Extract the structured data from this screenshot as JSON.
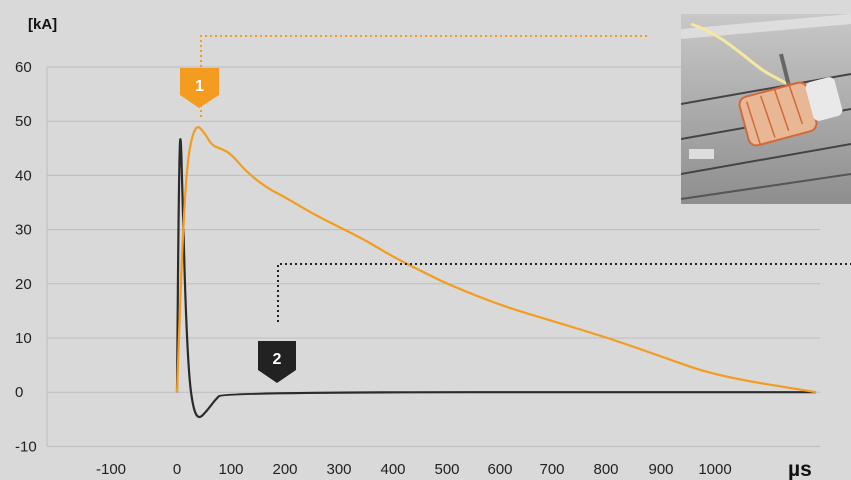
{
  "chart_data": {
    "type": "line",
    "y_unit": "[kA]",
    "x_unit": "µs",
    "ylim": [
      -10,
      60
    ],
    "y_ticks": [
      60,
      50,
      40,
      30,
      20,
      10,
      0,
      -10
    ],
    "x_ticks": [
      "-100",
      "0",
      "100",
      "200",
      "300",
      "400",
      "500",
      "600",
      "700",
      "800",
      "900",
      "1000"
    ],
    "grid": true,
    "series": [
      {
        "color": "#f39c1f",
        "marker": "1",
        "points": [
          {
            "t": "0",
            "y": 0
          },
          {
            "t": "10",
            "y": 28
          },
          {
            "t": "20",
            "y": 44
          },
          {
            "t": "35",
            "y": 49.5
          },
          {
            "t": "50",
            "y": 48
          },
          {
            "t": "65",
            "y": 45.5
          },
          {
            "t": "80",
            "y": 45
          },
          {
            "t": "100",
            "y": 44
          },
          {
            "t": "130",
            "y": 40.5
          },
          {
            "t": "170",
            "y": 37.5
          },
          {
            "t": "200",
            "y": 36
          },
          {
            "t": "250",
            "y": 33
          },
          {
            "t": "300",
            "y": 30.5
          },
          {
            "t": "350",
            "y": 28
          },
          {
            "t": "400",
            "y": 25
          },
          {
            "t": "450",
            "y": 22.5
          },
          {
            "t": "500",
            "y": 20
          },
          {
            "t": "600",
            "y": 16
          },
          {
            "t": "700",
            "y": 13
          },
          {
            "t": "800",
            "y": 10
          },
          {
            "t": "900",
            "y": 6.5
          },
          {
            "t": "1000",
            "y": 3
          },
          {
            "t": "end",
            "y": 0
          }
        ]
      },
      {
        "color": "#2b2b2b",
        "marker": "2",
        "points": [
          {
            "t": "0",
            "y": 0
          },
          {
            "t": "3",
            "y": 35
          },
          {
            "t": "6",
            "y": 50
          },
          {
            "t": "10",
            "y": 38
          },
          {
            "t": "15",
            "y": 18
          },
          {
            "t": "22",
            "y": 3
          },
          {
            "t": "30",
            "y": -3
          },
          {
            "t": "40",
            "y": -5
          },
          {
            "t": "55",
            "y": -3.5
          },
          {
            "t": "70",
            "y": -1.5
          },
          {
            "t": "85",
            "y": 0
          },
          {
            "t": "1000",
            "y": 0
          },
          {
            "t": "end",
            "y": 0
          }
        ]
      }
    ]
  },
  "photo": {
    "description_icon": "lightning-arrester-photo"
  }
}
